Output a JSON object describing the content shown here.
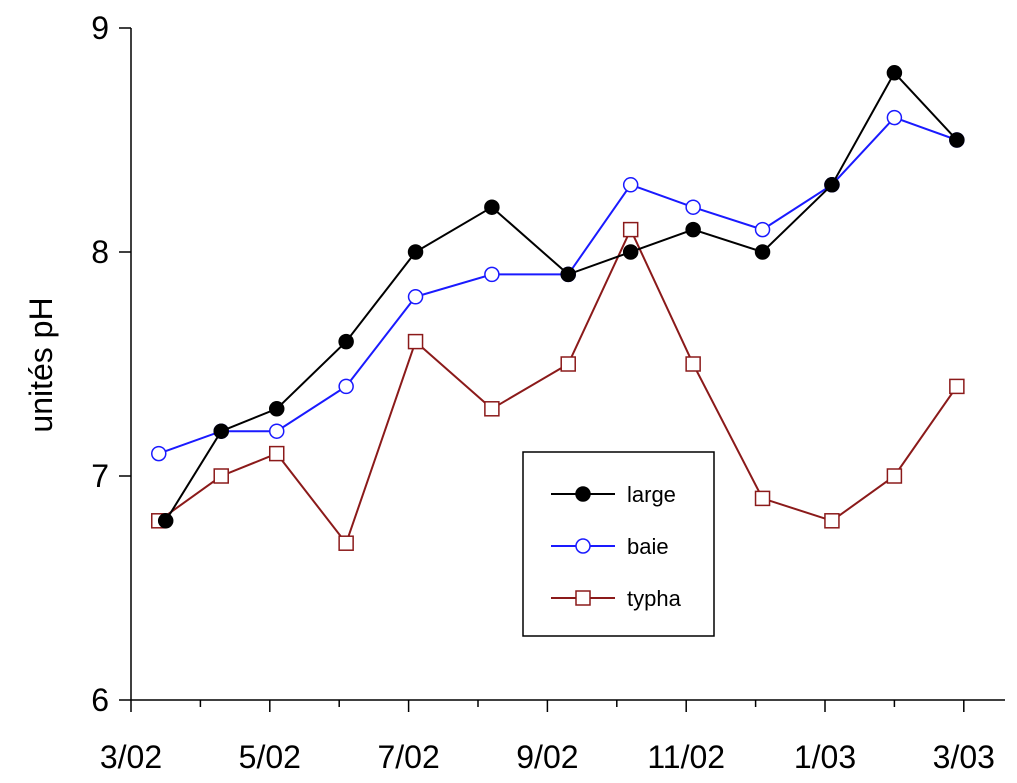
{
  "chart_data": {
    "type": "line",
    "title": "",
    "xlabel": "",
    "ylabel": "unités pH",
    "ylim": [
      6,
      9
    ],
    "yticks": [
      6,
      7,
      8,
      9
    ],
    "x_tick_labels": [
      "3/02",
      "5/02",
      "7/02",
      "9/02",
      "11/02",
      "1/03",
      "3/03"
    ],
    "x_tick_positions": [
      0,
      2,
      4,
      6,
      8,
      10,
      12
    ],
    "xlim": [
      0,
      12.3
    ],
    "grid": false,
    "legend_position": "center-right",
    "series": [
      {
        "name": "large",
        "color": "#000000",
        "marker": "filled-circle",
        "x": [
          0.5,
          1.3,
          2.1,
          3.1,
          4.1,
          5.2,
          6.3,
          7.2,
          8.1,
          9.1,
          10.1,
          11.0,
          11.9
        ],
        "values": [
          6.8,
          7.2,
          7.3,
          7.6,
          8.0,
          8.2,
          7.9,
          8.0,
          8.1,
          8.0,
          8.3,
          8.8,
          8.5
        ]
      },
      {
        "name": "baie",
        "color": "#1a1aff",
        "marker": "open-circle",
        "x": [
          0.4,
          1.3,
          2.1,
          3.1,
          4.1,
          5.2,
          6.3,
          7.2,
          8.1,
          9.1,
          10.1,
          11.0,
          11.9
        ],
        "values": [
          7.1,
          7.2,
          7.2,
          7.4,
          7.8,
          7.9,
          7.9,
          8.3,
          8.2,
          8.1,
          8.3,
          8.6,
          8.5
        ]
      },
      {
        "name": "typha",
        "color": "#8b1a1a",
        "marker": "open-square",
        "x": [
          0.4,
          1.3,
          2.1,
          3.1,
          4.1,
          5.2,
          6.3,
          7.2,
          8.1,
          9.1,
          10.1,
          11.0,
          11.9
        ],
        "values": [
          6.8,
          7.0,
          7.1,
          6.7,
          7.6,
          7.3,
          7.5,
          8.1,
          7.5,
          6.9,
          6.8,
          7.0,
          7.4
        ]
      }
    ]
  }
}
